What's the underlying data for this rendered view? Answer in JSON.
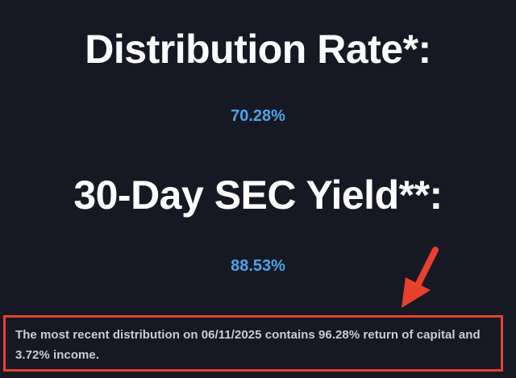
{
  "metrics": [
    {
      "label": "Distribution Rate*:",
      "value": "70.28%"
    },
    {
      "label": "30-Day SEC Yield**:",
      "value": "88.53%"
    }
  ],
  "notice": {
    "text": "The most recent distribution on 06/11/2025 contains 96.28% return of capital and 3.72% income."
  },
  "colors": {
    "background": "#161923",
    "heading": "#ffffff",
    "value": "#4da3e6",
    "notice_text": "#c9ccd3",
    "highlight": "#e8402d"
  },
  "annotation": {
    "icon": "arrow-down-left-icon"
  }
}
